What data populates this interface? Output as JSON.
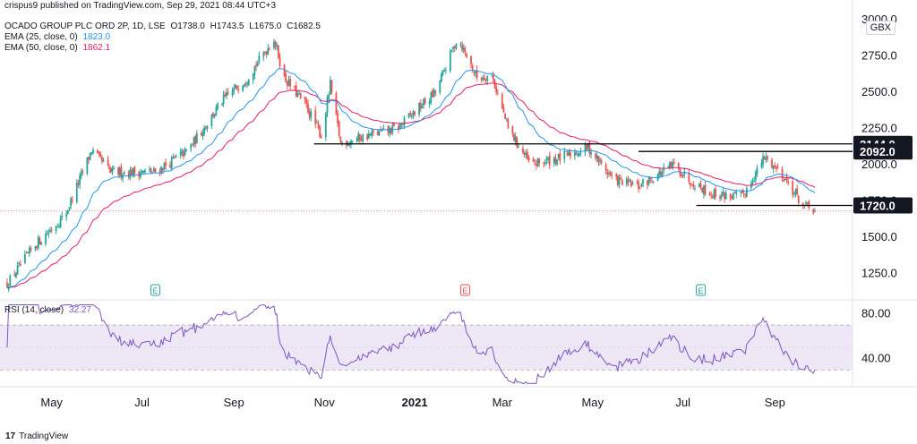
{
  "header": {
    "published": "crispus9 published on TradingView.com, Sep 29, 2021 08:44 UTC+3",
    "symbol": "OCADO GROUP PLC ORD 2P, 1D, LSE",
    "ohlc": {
      "o": "O1738.0",
      "h": "H1743.5",
      "l": "L1675.0",
      "c": "C1682.5"
    },
    "ema25_label": "EMA (25, close, 0)",
    "ema25_value": "1823.0",
    "ema50_label": "EMA (50, close, 0)",
    "ema50_value": "1862.1",
    "currency": "GBX"
  },
  "rsi_legend": {
    "label": "RSI (14, close)",
    "value": "32.27"
  },
  "footer": {
    "brand": "TradingView"
  },
  "colors": {
    "up": "#26a69a",
    "down": "#ef5350",
    "ema25": "#2196f3",
    "ema50": "#e91e63",
    "rsi": "#7e57c2",
    "rsi_band": "#ede7f6",
    "levels": "#000000"
  },
  "chart_data": [
    {
      "type": "candlestick",
      "title": "OCADO GROUP PLC ORD 2P, 1D, LSE",
      "ylim": [
        1100,
        3000
      ],
      "y_ticks": [
        "1250.0",
        "1500.0",
        "1750.0",
        "2000.0",
        "2250.0",
        "2500.0",
        "2750.0",
        "3000.0"
      ],
      "x_ticks": [
        "May",
        "Jul",
        "Sep",
        "Nov",
        "2021",
        "Mar",
        "May",
        "Jul",
        "Sep"
      ],
      "x_tick_dates": [
        "2020-05-01",
        "2020-07-01",
        "2020-09-01",
        "2020-11-01",
        "2021-01-01",
        "2021-03-01",
        "2021-05-01",
        "2021-07-01",
        "2021-09-01"
      ],
      "date_range": [
        "2020-04-01",
        "2021-09-28"
      ],
      "price_anchors": [
        [
          "2020-04-01",
          1180
        ],
        [
          "2020-04-20",
          1450
        ],
        [
          "2020-05-10",
          1650
        ],
        [
          "2020-05-28",
          2100
        ],
        [
          "2020-06-10",
          1950
        ],
        [
          "2020-07-10",
          1950
        ],
        [
          "2020-08-01",
          2100
        ],
        [
          "2020-08-25",
          2450
        ],
        [
          "2020-09-10",
          2600
        ],
        [
          "2020-09-28",
          2870
        ],
        [
          "2020-10-05",
          2600
        ],
        [
          "2020-10-20",
          2400
        ],
        [
          "2020-10-30",
          2200
        ],
        [
          "2020-11-05",
          2550
        ],
        [
          "2020-11-12",
          2150
        ],
        [
          "2020-11-30",
          2200
        ],
        [
          "2020-12-20",
          2250
        ],
        [
          "2021-01-15",
          2500
        ],
        [
          "2021-01-30",
          2880
        ],
        [
          "2021-02-12",
          2600
        ],
        [
          "2021-02-22",
          2620
        ],
        [
          "2021-03-05",
          2250
        ],
        [
          "2021-03-20",
          2000
        ],
        [
          "2021-04-10",
          2050
        ],
        [
          "2021-04-28",
          2120
        ],
        [
          "2021-05-15",
          1900
        ],
        [
          "2021-06-01",
          1850
        ],
        [
          "2021-06-25",
          2000
        ],
        [
          "2021-07-05",
          1900
        ],
        [
          "2021-07-20",
          1800
        ],
        [
          "2021-08-10",
          1780
        ],
        [
          "2021-08-25",
          2050
        ],
        [
          "2021-09-05",
          1950
        ],
        [
          "2021-09-20",
          1720
        ],
        [
          "2021-09-28",
          1682.5
        ]
      ],
      "horizontal_levels": [
        {
          "label": "2144.0",
          "value": 2144.0,
          "from": "2020-10-25"
        },
        {
          "label": "2092.0",
          "value": 2092.0,
          "from": "2021-06-01"
        },
        {
          "label": "1720.0",
          "value": 1720.0,
          "from": "2021-07-10"
        }
      ],
      "last_price": 1682.5,
      "earnings_markers": [
        {
          "date": "2020-07-10",
          "label": "E",
          "kind": "up"
        },
        {
          "date": "2021-02-04",
          "label": "E",
          "kind": "down"
        },
        {
          "date": "2021-07-13",
          "label": "E",
          "kind": "up"
        }
      ]
    },
    {
      "type": "line",
      "series": [
        {
          "name": "RSI (14, close)",
          "last": 32.27
        }
      ],
      "ylim": [
        15,
        90
      ],
      "y_ticks": [
        "40.00",
        "80.00"
      ],
      "band": [
        30,
        70
      ],
      "midline": 50
    }
  ]
}
